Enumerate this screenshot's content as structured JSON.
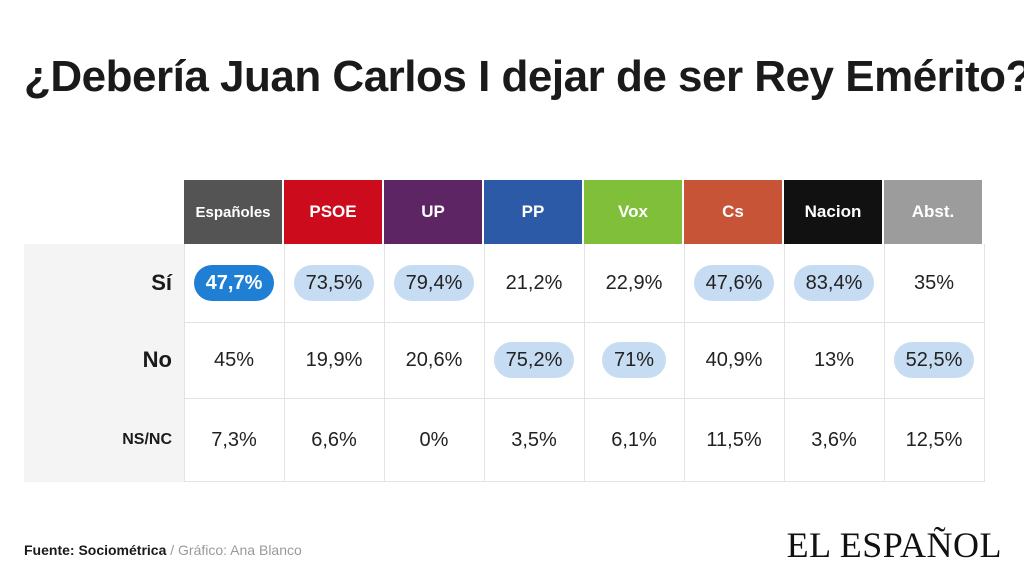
{
  "title": "¿Debería Juan Carlos I dejar de ser Rey Emérito?",
  "chart_data": {
    "type": "table",
    "columns": [
      {
        "label": "Españoles",
        "color": "#545454"
      },
      {
        "label": "PSOE",
        "color": "#cc0b1c"
      },
      {
        "label": "UP",
        "color": "#5d2563"
      },
      {
        "label": "PP",
        "color": "#2c5aa6"
      },
      {
        "label": "Vox",
        "color": "#7fbf3a"
      },
      {
        "label": "Cs",
        "color": "#c75437"
      },
      {
        "label": "Nacion",
        "color": "#111111"
      },
      {
        "label": "Abst.",
        "color": "#9c9c9c"
      }
    ],
    "rows": [
      {
        "label": "Sí",
        "values": [
          "47,7%",
          "73,5%",
          "79,4%",
          "21,2%",
          "22,9%",
          "47,6%",
          "83,4%",
          "35%"
        ]
      },
      {
        "label": "No",
        "values": [
          "45%",
          "19,9%",
          "20,6%",
          "75,2%",
          "71%",
          "40,9%",
          "13%",
          "52,5%"
        ]
      },
      {
        "label": "NS/NC",
        "values": [
          "7,3%",
          "6,6%",
          "0%",
          "3,5%",
          "6,1%",
          "11,5%",
          "3,6%",
          "12,5%"
        ]
      }
    ],
    "highlighted_cells": [
      {
        "row": 0,
        "col": 0,
        "style": "main"
      },
      {
        "row": 0,
        "col": 1,
        "style": "light"
      },
      {
        "row": 0,
        "col": 2,
        "style": "light"
      },
      {
        "row": 0,
        "col": 5,
        "style": "light"
      },
      {
        "row": 0,
        "col": 6,
        "style": "light"
      },
      {
        "row": 1,
        "col": 3,
        "style": "light"
      },
      {
        "row": 1,
        "col": 4,
        "style": "light"
      },
      {
        "row": 1,
        "col": 7,
        "style": "light"
      }
    ],
    "highlight_colors": {
      "main": "#1f7fd4",
      "light": "#c5dcf2"
    }
  },
  "footer": {
    "source": "Fuente: Sociométrica",
    "credit": " / Gráfico: Ana Blanco"
  },
  "logo": "EL ESPAÑOL"
}
